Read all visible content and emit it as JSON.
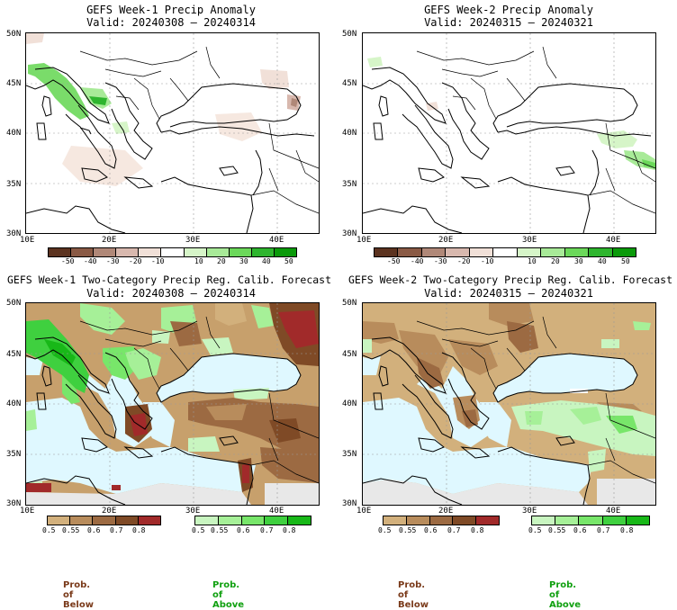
{
  "panels": {
    "p1": {
      "title": "GEFS Week-1 Precip Anomaly",
      "valid": "Valid: 20240308 – 20240314"
    },
    "p2": {
      "title": "GEFS Week-2 Precip Anomaly",
      "valid": "Valid: 20240315 – 20240321"
    },
    "p3": {
      "title": "GEFS Week-1 Two-Category Precip Reg. Calib. Forecast",
      "valid": "Valid: 20240308 – 20240314"
    },
    "p4": {
      "title": "GEFS Week-2 Two-Category Precip Reg. Calib. Forecast",
      "valid": "Valid: 20240315 – 20240321"
    }
  },
  "axes": {
    "lat_labels": [
      "50N",
      "45N",
      "40N",
      "35N",
      "30N"
    ],
    "lon_labels": [
      "10E",
      "20E",
      "30E",
      "40E"
    ]
  },
  "anomaly_colorbar": {
    "ticks": [
      "-50",
      "-40",
      "-30",
      "-20",
      "-10",
      "10",
      "20",
      "30",
      "40",
      "50"
    ],
    "colors": [
      "#5c3320",
      "#8a5a45",
      "#b08878",
      "#d8b8ae",
      "#f1e0d8",
      "#ffffff",
      "#d6f5c8",
      "#a8ea98",
      "#6bd85a",
      "#2eb52e",
      "#0a9a0a"
    ]
  },
  "prob_colorbars": {
    "below_ticks": [
      "0.5",
      "0.55",
      "0.6",
      "0.7",
      "0.8"
    ],
    "above_ticks": [
      "0.5",
      "0.55",
      "0.6",
      "0.7",
      "0.8"
    ],
    "below_colors": [
      "#d2b07c",
      "#b88c5c",
      "#9c6a42",
      "#7f4a26",
      "#a12a2a"
    ],
    "above_colors": [
      "#c8f5c0",
      "#a6f098",
      "#78e66a",
      "#3fd03f",
      "#18b818"
    ]
  },
  "legend": {
    "below_label": "Prob. of Below",
    "above_label": "Prob. of Above",
    "below_color": "#7a3a1a",
    "above_color": "#10a010"
  }
}
